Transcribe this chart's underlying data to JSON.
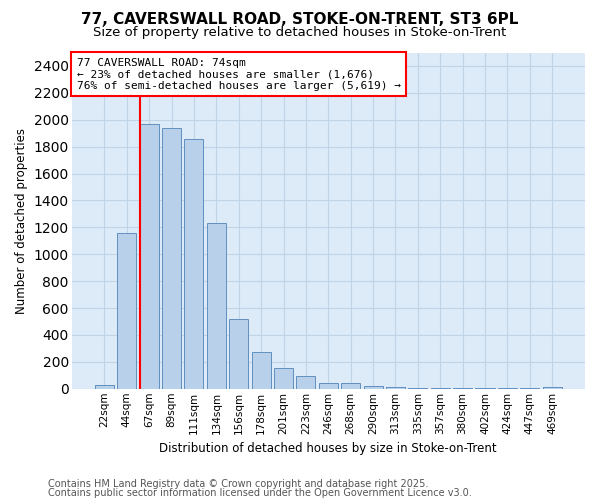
{
  "title1": "77, CAVERSWALL ROAD, STOKE-ON-TRENT, ST3 6PL",
  "title2": "Size of property relative to detached houses in Stoke-on-Trent",
  "xlabel": "Distribution of detached houses by size in Stoke-on-Trent",
  "ylabel": "Number of detached properties",
  "categories": [
    "22sqm",
    "44sqm",
    "67sqm",
    "89sqm",
    "111sqm",
    "134sqm",
    "156sqm",
    "178sqm",
    "201sqm",
    "223sqm",
    "246sqm",
    "268sqm",
    "290sqm",
    "313sqm",
    "335sqm",
    "357sqm",
    "380sqm",
    "402sqm",
    "424sqm",
    "447sqm",
    "469sqm"
  ],
  "values": [
    30,
    1155,
    1970,
    1940,
    1855,
    1230,
    520,
    275,
    155,
    95,
    45,
    45,
    20,
    15,
    8,
    5,
    4,
    3,
    2,
    2,
    15
  ],
  "bar_color": "#b8d0ea",
  "bar_edge_color": "#6090c0",
  "vline_x": 1.6,
  "vline_color": "red",
  "annotation_line1": "77 CAVERSWALL ROAD: 74sqm",
  "annotation_line2": "← 23% of detached houses are smaller (1,676)",
  "annotation_line3": "76% of semi-detached houses are larger (5,619) →",
  "annotation_box_color": "white",
  "annotation_edge_color": "red",
  "ylim": [
    0,
    2500
  ],
  "yticks": [
    0,
    200,
    400,
    600,
    800,
    1000,
    1200,
    1400,
    1600,
    1800,
    2000,
    2200,
    2400
  ],
  "grid_color": "#c0d4e8",
  "background_color": "#ddeaf7",
  "footer1": "Contains HM Land Registry data © Crown copyright and database right 2025.",
  "footer2": "Contains public sector information licensed under the Open Government Licence v3.0.",
  "title_fontsize": 11,
  "subtitle_fontsize": 9.5,
  "label_fontsize": 8.5,
  "tick_fontsize": 7.5,
  "footer_fontsize": 7
}
